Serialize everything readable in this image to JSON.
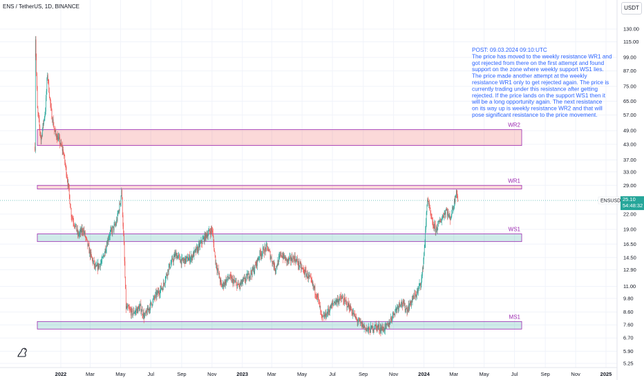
{
  "header": {
    "title": "ENS / TetherUS, 1D, BINANCE",
    "currency_button": "USDT"
  },
  "chart_data": {
    "type": "candlestick",
    "symbol": "ENSUSDT",
    "x_tick_labels": [
      "2022",
      "Mar",
      "May",
      "Jul",
      "Sep",
      "Nov",
      "2023",
      "Mar",
      "May",
      "Jul",
      "Sep",
      "Nov",
      "2024",
      "Mar",
      "May",
      "Jul",
      "Sep",
      "Nov",
      "2025"
    ],
    "y_tick_labels": [
      "130.00",
      "115.00",
      "99.00",
      "87.00",
      "75.00",
      "65.00",
      "57.00",
      "49.00",
      "43.00",
      "37.00",
      "33.00",
      "29.00",
      "22.00",
      "19.00",
      "16.50",
      "14.50",
      "12.90",
      "11.00",
      "9.80",
      "8.60",
      "7.60",
      "6.70",
      "5.90",
      "5.25"
    ],
    "y_scale": "log",
    "y_tick_values": [
      130,
      115,
      99,
      87,
      75,
      65,
      57,
      49,
      43,
      37,
      33,
      29,
      22,
      19,
      16.5,
      14.5,
      12.9,
      11,
      9.8,
      8.6,
      7.6,
      6.7,
      5.9,
      5.25
    ],
    "current_price": "25.10",
    "countdown": "54:48:32",
    "colors": {
      "up": "#26a69a",
      "down": "#ef5350",
      "resistance": "#ef5350",
      "support": "#26a69a",
      "zone_border": "#9c27b0",
      "note": "#2962ff"
    },
    "zones": [
      {
        "name": "WR2",
        "kind": "resistance",
        "low": 42.5,
        "high": 49.5
      },
      {
        "name": "WR1",
        "kind": "resistance",
        "low": 28.0,
        "high": 29.0
      },
      {
        "name": "WS1",
        "kind": "support",
        "low": 16.9,
        "high": 18.2
      },
      {
        "name": "MS1",
        "kind": "support",
        "low": 7.3,
        "high": 7.85
      }
    ],
    "price_path": [
      [
        "2021-11-10",
        42
      ],
      [
        "2021-11-11",
        120
      ],
      [
        "2021-11-15",
        60
      ],
      [
        "2021-11-22",
        45
      ],
      [
        "2021-12-01",
        60
      ],
      [
        "2021-12-05",
        85
      ],
      [
        "2021-12-12",
        60
      ],
      [
        "2021-12-20",
        48
      ],
      [
        "2021-12-28",
        45
      ],
      [
        "2022-01-06",
        40
      ],
      [
        "2022-01-15",
        30
      ],
      [
        "2022-01-22",
        22
      ],
      [
        "2022-02-05",
        18
      ],
      [
        "2022-02-15",
        19
      ],
      [
        "2022-03-01",
        15
      ],
      [
        "2022-03-12",
        13
      ],
      [
        "2022-03-25",
        14
      ],
      [
        "2022-04-08",
        18
      ],
      [
        "2022-04-22",
        20
      ],
      [
        "2022-05-01",
        25
      ],
      [
        "2022-05-03",
        28
      ],
      [
        "2022-05-08",
        16
      ],
      [
        "2022-05-12",
        9
      ],
      [
        "2022-05-25",
        8.5
      ],
      [
        "2022-06-10",
        9
      ],
      [
        "2022-06-18",
        8.2
      ],
      [
        "2022-06-28",
        9
      ],
      [
        "2022-07-10",
        10
      ],
      [
        "2022-07-25",
        11
      ],
      [
        "2022-08-05",
        13
      ],
      [
        "2022-08-20",
        15
      ],
      [
        "2022-09-01",
        14
      ],
      [
        "2022-09-20",
        14.5
      ],
      [
        "2022-10-05",
        16
      ],
      [
        "2022-10-20",
        18
      ],
      [
        "2022-11-01",
        19
      ],
      [
        "2022-11-08",
        14
      ],
      [
        "2022-11-20",
        11
      ],
      [
        "2022-12-05",
        12
      ],
      [
        "2022-12-25",
        11
      ],
      [
        "2023-01-10",
        12
      ],
      [
        "2023-01-25",
        13
      ],
      [
        "2023-02-05",
        15
      ],
      [
        "2023-02-20",
        16
      ],
      [
        "2023-03-08",
        13
      ],
      [
        "2023-03-20",
        15
      ],
      [
        "2023-04-01",
        14
      ],
      [
        "2023-04-15",
        14.5
      ],
      [
        "2023-05-01",
        13
      ],
      [
        "2023-05-15",
        12
      ],
      [
        "2023-06-01",
        10
      ],
      [
        "2023-06-10",
        8
      ],
      [
        "2023-06-20",
        8.5
      ],
      [
        "2023-07-05",
        9.5
      ],
      [
        "2023-07-20",
        9.8
      ],
      [
        "2023-08-05",
        9
      ],
      [
        "2023-08-18",
        8
      ],
      [
        "2023-09-01",
        7.5
      ],
      [
        "2023-09-12",
        7.2
      ],
      [
        "2023-09-25",
        7.5
      ],
      [
        "2023-10-10",
        7.3
      ],
      [
        "2023-10-20",
        7.5
      ],
      [
        "2023-11-01",
        8.5
      ],
      [
        "2023-11-15",
        9.5
      ],
      [
        "2023-11-28",
        8.8
      ],
      [
        "2023-12-10",
        9.8
      ],
      [
        "2023-12-20",
        10.5
      ],
      [
        "2023-12-28",
        12
      ],
      [
        "2024-01-03",
        17
      ],
      [
        "2024-01-08",
        26
      ],
      [
        "2024-01-12",
        23
      ],
      [
        "2024-01-18",
        20
      ],
      [
        "2024-01-25",
        19
      ],
      [
        "2024-02-05",
        21
      ],
      [
        "2024-02-15",
        23
      ],
      [
        "2024-02-22",
        21
      ],
      [
        "2024-03-01",
        24
      ],
      [
        "2024-03-06",
        28
      ],
      [
        "2024-03-09",
        25.1
      ]
    ],
    "timeline": {
      "start": "2021-11-01",
      "end": "2025-01-31"
    },
    "price_range": [
      5.0,
      145.0
    ]
  },
  "annotation_note": [
    "POST: 09.03.2024 09:10:UTC",
    "The price has moved to the weekly resistance WR1 and",
    "got rejected from there on the first attempt and found",
    "support on the zone where weekly support WS1 lies.",
    "The price made another attempt at the weekly",
    "resistance WR1 only to get rejected again. The price is",
    "currently trading under this resistance after getting",
    "rejected. If the price lands on the support WS1 then it",
    "will be a long opportunity again. The next resistance",
    "on its way up is weekly resistance WR2 and that will",
    "pose significant resistance to the price movement."
  ],
  "logo_icon": "tradingview-dino-icon"
}
